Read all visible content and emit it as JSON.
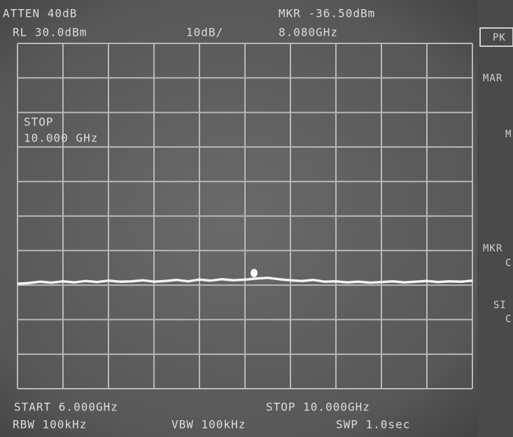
{
  "chart_data": {
    "type": "line",
    "annotations": [
      "ATTEN 40dB",
      "RL 30.0dBm",
      "10dB/",
      "MKR -36.50dBm",
      "8.080GHz",
      "STOP",
      "10.000 GHz",
      "START 6.000GHz",
      "STOP 10.000GHz",
      "RBW 100kHz",
      "VBW 100kHz",
      "SWP 1.0sec"
    ],
    "softkeys": [
      "PK",
      "MAR",
      "M",
      "MKR",
      "C",
      "SI",
      "C"
    ],
    "x": [
      6.0,
      6.1,
      6.2,
      6.3,
      6.4,
      6.5,
      6.6,
      6.7,
      6.8,
      6.9,
      7.0,
      7.1,
      7.2,
      7.3,
      7.4,
      7.5,
      7.6,
      7.7,
      7.8,
      7.9,
      8.0,
      8.1,
      8.2,
      8.3,
      8.4,
      8.5,
      8.6,
      8.7,
      8.8,
      8.9,
      9.0,
      9.1,
      9.2,
      9.3,
      9.4,
      9.5,
      9.6,
      9.7,
      9.8,
      9.9,
      10.0
    ],
    "series": [
      {
        "color": "#f4f4f4",
        "values": [
          -39.6,
          -39.4,
          -39.0,
          -39.3,
          -38.9,
          -39.2,
          -38.8,
          -39.1,
          -38.7,
          -39.0,
          -38.9,
          -38.6,
          -39.0,
          -38.8,
          -38.5,
          -38.9,
          -38.4,
          -38.7,
          -38.3,
          -38.6,
          -38.4,
          -38.1,
          -37.9,
          -38.3,
          -38.6,
          -38.8,
          -38.5,
          -39.0,
          -38.9,
          -39.2,
          -39.0,
          -39.3,
          -39.1,
          -38.9,
          -39.2,
          -39.0,
          -38.8,
          -39.1,
          -38.9,
          -39.0,
          -38.7
        ]
      }
    ],
    "marker": {
      "x": 8.08,
      "value": -36.5
    },
    "xlim": [
      6,
      10
    ],
    "ylim": [
      -70,
      30
    ],
    "grid": true
  }
}
